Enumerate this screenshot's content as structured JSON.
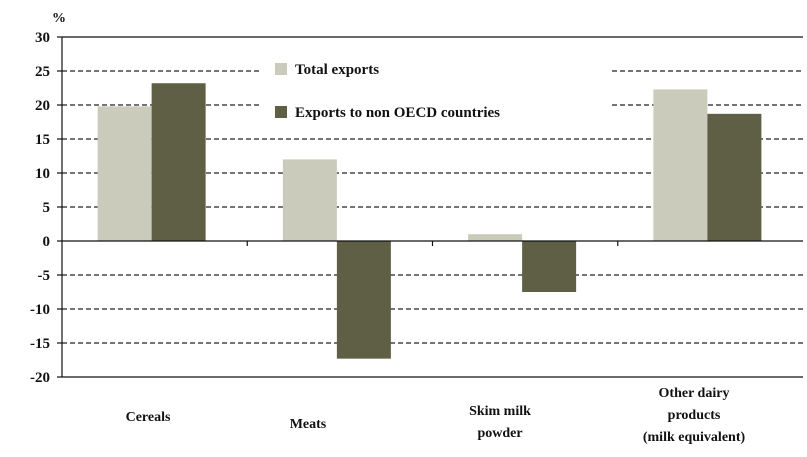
{
  "chart_data": {
    "type": "bar",
    "title": "",
    "xlabel": "",
    "ylabel": "%",
    "ylim": [
      -20,
      30
    ],
    "yticks": [
      30,
      25,
      20,
      15,
      10,
      5,
      0,
      -5,
      -10,
      -15,
      -20
    ],
    "grid": "horizontal dashed",
    "legend_position": "top-center",
    "categories": [
      [
        "Cereals"
      ],
      [
        "Meats"
      ],
      [
        "Skim milk",
        "powder"
      ],
      [
        "Other dairy",
        "products",
        "(milk equivalent)"
      ]
    ],
    "series": [
      {
        "name": "Total exports",
        "color": "#cbcbbb",
        "values": [
          19.8,
          12.0,
          1.0,
          22.3
        ]
      },
      {
        "name": "Exports to non OECD countries",
        "color": "#5f5f45",
        "values": [
          23.2,
          -17.3,
          -7.5,
          18.7
        ]
      }
    ]
  }
}
